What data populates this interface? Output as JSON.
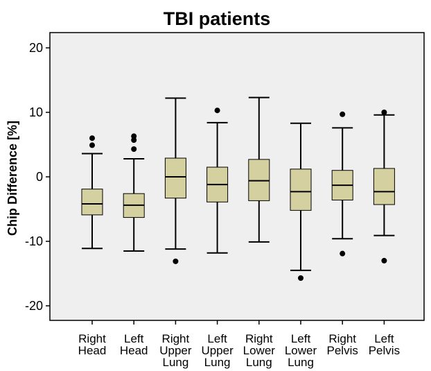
{
  "chart_data": {
    "type": "box",
    "title": "TBI patients",
    "xlabel": "",
    "ylabel": "Chip Difference [%]",
    "ylim": [
      -22,
      22
    ],
    "yticks": [
      20,
      10,
      0,
      -10,
      -20
    ],
    "ytick_labels": [
      "20",
      "10",
      "0",
      "-10",
      "-20"
    ],
    "grid": false,
    "categories": [
      [
        "Right",
        "Head"
      ],
      [
        "Left",
        "Head"
      ],
      [
        "Right",
        "Upper",
        "Lung"
      ],
      [
        "Left",
        "Upper",
        "Lung"
      ],
      [
        "Right",
        "Lower",
        "Lung"
      ],
      [
        "Left",
        "Lower",
        "Lung"
      ],
      [
        "Right",
        "Pelvis"
      ],
      [
        "Left",
        "Pelvis"
      ]
    ],
    "boxes": [
      {
        "whisker_low": -11.1,
        "q1": -5.9,
        "median": -4.2,
        "q3": -1.9,
        "whisker_high": 3.6,
        "outliers": [
          4.9,
          6.0
        ]
      },
      {
        "whisker_low": -11.5,
        "q1": -6.3,
        "median": -4.4,
        "q3": -2.6,
        "whisker_high": 2.8,
        "outliers": [
          4.3,
          5.7,
          6.3
        ]
      },
      {
        "whisker_low": -11.2,
        "q1": -3.3,
        "median": 0.0,
        "q3": 2.9,
        "whisker_high": 12.2,
        "outliers": [
          -13.1
        ]
      },
      {
        "whisker_low": -11.8,
        "q1": -3.9,
        "median": -1.2,
        "q3": 1.5,
        "whisker_high": 8.4,
        "outliers": [
          10.3
        ]
      },
      {
        "whisker_low": -10.1,
        "q1": -3.7,
        "median": -0.6,
        "q3": 2.7,
        "whisker_high": 12.3,
        "outliers": []
      },
      {
        "whisker_low": -14.5,
        "q1": -5.2,
        "median": -2.3,
        "q3": 1.2,
        "whisker_high": 8.3,
        "outliers": [
          -15.7
        ]
      },
      {
        "whisker_low": -9.6,
        "q1": -3.6,
        "median": -1.3,
        "q3": 1.0,
        "whisker_high": 7.6,
        "outliers": [
          9.7,
          -11.9
        ]
      },
      {
        "whisker_low": -9.1,
        "q1": -4.3,
        "median": -2.3,
        "q3": 1.3,
        "whisker_high": 9.6,
        "outliers": [
          10.0,
          -13.0
        ]
      }
    ],
    "colors": {
      "plot_background": "#efefef",
      "box_fill": "#d5d09f",
      "stroke": "#000000"
    }
  }
}
